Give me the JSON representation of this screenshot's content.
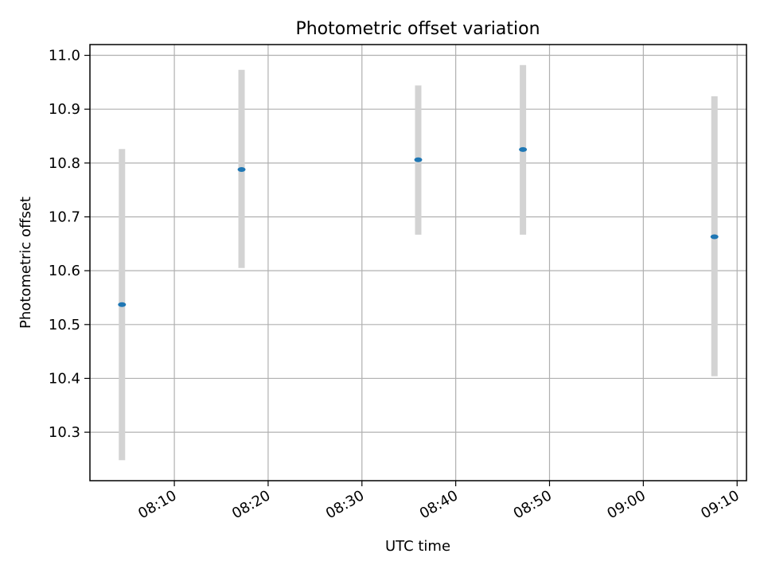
{
  "chart_data": {
    "type": "scatter",
    "title": "Photometric offset variation",
    "xlabel": "UTC time",
    "ylabel": "Photometric offset",
    "grid": true,
    "x_ticks": [
      "08:10",
      "08:20",
      "08:30",
      "08:40",
      "08:50",
      "09:00",
      "09:10"
    ],
    "y_ticks": [
      "10.3",
      "10.4",
      "10.5",
      "10.6",
      "10.7",
      "10.8",
      "10.9",
      "11.0"
    ],
    "xlim": [
      "08:01",
      "09:11"
    ],
    "ylim": [
      10.21,
      11.02
    ],
    "series": [
      {
        "x": [
          "08:04:25",
          "08:17:10",
          "08:36:00",
          "08:47:10",
          "09:07:35"
        ],
        "y": [
          10.537,
          10.788,
          10.806,
          10.825,
          10.663
        ],
        "yerr_low": [
          10.248,
          10.605,
          10.667,
          10.667,
          10.404
        ],
        "yerr_high": [
          10.826,
          10.973,
          10.944,
          10.982,
          10.924
        ]
      }
    ],
    "colors": {
      "marker": "#1f77b4",
      "errorbar": "#d3d3d3",
      "grid": "#b0b0b0",
      "axes": "#000000"
    }
  }
}
